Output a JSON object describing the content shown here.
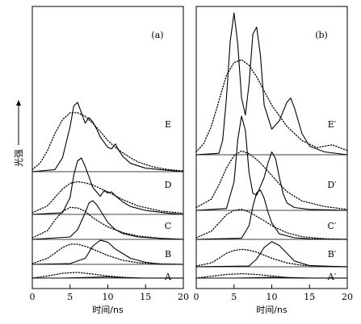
{
  "chart_data": [
    {
      "type": "line",
      "panel_label": "(a)",
      "xlabel": "时间/ns",
      "ylabel": "光强",
      "xlim": [
        0,
        20
      ],
      "x_ticks": [
        "0",
        "5",
        "10",
        "15",
        "20"
      ],
      "series": [
        {
          "name": "A",
          "solid": {
            "x": [
              0,
              4,
              8,
              10,
              12,
              15,
              20
            ],
            "y": [
              0,
              0,
              0.02,
              0.03,
              0.01,
              0,
              0
            ]
          },
          "dotted": {
            "x": [
              0,
              2,
              4,
              6,
              8,
              10,
              12,
              14,
              20
            ],
            "y": [
              0,
              0.05,
              0.12,
              0.14,
              0.1,
              0.05,
              0.02,
              0,
              0
            ]
          }
        },
        {
          "name": "B",
          "solid": {
            "x": [
              0,
              5,
              7,
              8,
              9,
              10,
              11,
              13,
              15,
              17,
              20
            ],
            "y": [
              0,
              0.02,
              0.15,
              0.45,
              0.6,
              0.55,
              0.38,
              0.15,
              0.05,
              0.01,
              0
            ]
          },
          "dotted": {
            "x": [
              0,
              2,
              3,
              4,
              5,
              6,
              7,
              8,
              9,
              10,
              12,
              14,
              17,
              20
            ],
            "y": [
              0.02,
              0.15,
              0.28,
              0.42,
              0.5,
              0.5,
              0.45,
              0.38,
              0.3,
              0.22,
              0.1,
              0.04,
              0.01,
              0
            ]
          }
        },
        {
          "name": "C",
          "solid": {
            "x": [
              0,
              5,
              6,
              7,
              7.5,
              8,
              8.5,
              9,
              10,
              11,
              12,
              14,
              17,
              20
            ],
            "y": [
              0,
              0.05,
              0.2,
              0.55,
              0.75,
              0.8,
              0.72,
              0.6,
              0.35,
              0.2,
              0.12,
              0.05,
              0.02,
              0
            ]
          },
          "dotted": {
            "x": [
              0,
              2,
              3,
              4,
              5,
              6,
              7,
              8,
              9,
              10,
              12,
              14,
              17,
              20
            ],
            "y": [
              0.03,
              0.18,
              0.4,
              0.58,
              0.66,
              0.65,
              0.58,
              0.45,
              0.35,
              0.26,
              0.14,
              0.07,
              0.02,
              0
            ]
          }
        },
        {
          "name": "D",
          "solid": {
            "x": [
              0,
              4,
              5,
              5.5,
              6,
              6.5,
              7,
              8,
              9,
              9.5,
              10,
              10.5,
              11,
              12,
              13,
              15,
              18,
              20
            ],
            "y": [
              0,
              0.03,
              0.3,
              0.7,
              0.95,
              1.0,
              0.85,
              0.48,
              0.32,
              0.42,
              0.38,
              0.4,
              0.33,
              0.22,
              0.14,
              0.07,
              0.02,
              0
            ]
          },
          "dotted": {
            "x": [
              0,
              2,
              3,
              4,
              5,
              6,
              7,
              8,
              9,
              10,
              11,
              12,
              14,
              17,
              20
            ],
            "y": [
              0.03,
              0.15,
              0.3,
              0.45,
              0.55,
              0.58,
              0.56,
              0.52,
              0.46,
              0.4,
              0.33,
              0.26,
              0.15,
              0.06,
              0.02
            ]
          }
        },
        {
          "name": "E",
          "solid": {
            "x": [
              0,
              3,
              4,
              5,
              5.5,
              6,
              6.5,
              7,
              7.5,
              8,
              8.5,
              9,
              10,
              10.5,
              11,
              11.5,
              12,
              13,
              15,
              18,
              20
            ],
            "y": [
              0,
              0.03,
              0.2,
              0.65,
              0.95,
              1.0,
              0.85,
              0.7,
              0.78,
              0.72,
              0.62,
              0.5,
              0.35,
              0.33,
              0.4,
              0.3,
              0.22,
              0.12,
              0.05,
              0.02,
              0
            ]
          },
          "dotted": {
            "x": [
              0,
              1,
              2,
              3,
              4,
              5,
              6,
              7,
              8,
              9,
              10,
              11,
              12,
              13,
              14,
              16,
              18,
              20
            ],
            "y": [
              0.03,
              0.12,
              0.3,
              0.55,
              0.75,
              0.85,
              0.85,
              0.8,
              0.7,
              0.58,
              0.45,
              0.35,
              0.27,
              0.2,
              0.14,
              0.07,
              0.03,
              0.01
            ]
          }
        }
      ]
    },
    {
      "type": "line",
      "panel_label": "(b)",
      "xlabel": "时间/ns",
      "xlim": [
        0,
        20
      ],
      "x_ticks": [
        "0",
        "5",
        "10",
        "15",
        "20"
      ],
      "series": [
        {
          "name": "A′",
          "solid": {
            "x": [
              0,
              5,
              8,
              10,
              12,
              15,
              20
            ],
            "y": [
              0,
              0,
              0.01,
              0.02,
              0.01,
              0,
              0
            ]
          },
          "dotted": {
            "x": [
              0,
              2,
              4,
              6,
              8,
              10,
              12,
              14,
              20
            ],
            "y": [
              0,
              0.05,
              0.1,
              0.12,
              0.1,
              0.06,
              0.02,
              0,
              0
            ]
          }
        },
        {
          "name": "B′",
          "solid": {
            "x": [
              0,
              7,
              8,
              9,
              10,
              11,
              12,
              13,
              15,
              20
            ],
            "y": [
              0,
              0.02,
              0.2,
              0.5,
              0.65,
              0.55,
              0.35,
              0.15,
              0.03,
              0
            ]
          },
          "dotted": {
            "x": [
              0,
              2,
              3,
              4,
              5,
              6,
              7,
              8,
              9,
              10,
              12,
              14,
              17,
              20
            ],
            "y": [
              0.02,
              0.1,
              0.22,
              0.35,
              0.42,
              0.45,
              0.43,
              0.38,
              0.3,
              0.22,
              0.1,
              0.04,
              0.01,
              0
            ]
          }
        },
        {
          "name": "C′",
          "solid": {
            "x": [
              0,
              6,
              7,
              7.5,
              8,
              8.5,
              9,
              9.5,
              10,
              11,
              13,
              15,
              20
            ],
            "y": [
              0,
              0.02,
              0.25,
              0.6,
              0.85,
              0.9,
              0.75,
              0.5,
              0.3,
              0.1,
              0.03,
              0.01,
              0
            ]
          },
          "dotted": {
            "x": [
              0,
              2,
              3,
              4,
              5,
              6,
              7,
              8,
              9,
              10,
              12,
              14,
              17,
              20
            ],
            "y": [
              0.03,
              0.15,
              0.3,
              0.45,
              0.53,
              0.55,
              0.5,
              0.42,
              0.34,
              0.25,
              0.12,
              0.05,
              0.01,
              0
            ]
          }
        },
        {
          "name": "D′",
          "solid": {
            "x": [
              0,
              4,
              5,
              5.5,
              6,
              6.5,
              7,
              7.5,
              8,
              9,
              9.5,
              10,
              10.5,
              11,
              11.5,
              12,
              13,
              15,
              20
            ],
            "y": [
              0,
              0.02,
              0.3,
              0.75,
              1.0,
              0.85,
              0.4,
              0.18,
              0.16,
              0.35,
              0.5,
              0.62,
              0.55,
              0.35,
              0.18,
              0.08,
              0.03,
              0.01,
              0
            ]
          },
          "dotted": {
            "x": [
              0,
              2,
              3,
              4,
              5,
              6,
              7,
              8,
              9,
              10,
              11,
              12,
              14,
              17,
              20
            ],
            "y": [
              0.03,
              0.12,
              0.27,
              0.45,
              0.58,
              0.63,
              0.6,
              0.54,
              0.46,
              0.37,
              0.28,
              0.2,
              0.1,
              0.04,
              0.01
            ]
          }
        },
        {
          "name": "E′",
          "solid": {
            "x": [
              0,
              3,
              3.5,
              4,
              4.5,
              5,
              5.5,
              6,
              6.5,
              7,
              7.5,
              8,
              8.5,
              9,
              10,
              11,
              12,
              12.5,
              13,
              14,
              15,
              17,
              20
            ],
            "y": [
              0,
              0.01,
              0.1,
              0.4,
              0.8,
              1.0,
              0.78,
              0.4,
              0.28,
              0.5,
              0.85,
              0.9,
              0.7,
              0.35,
              0.18,
              0.24,
              0.37,
              0.4,
              0.33,
              0.15,
              0.06,
              0.02,
              0
            ]
          },
          "dotted": {
            "x": [
              0,
              1,
              2,
              3,
              4,
              5,
              6,
              7,
              8,
              9,
              10,
              12,
              14,
              16,
              17,
              18,
              19,
              20
            ],
            "y": [
              0.02,
              0.08,
              0.2,
              0.38,
              0.56,
              0.65,
              0.67,
              0.63,
              0.55,
              0.45,
              0.35,
              0.2,
              0.1,
              0.05,
              0.06,
              0.07,
              0.05,
              0.03
            ]
          }
        }
      ]
    }
  ]
}
